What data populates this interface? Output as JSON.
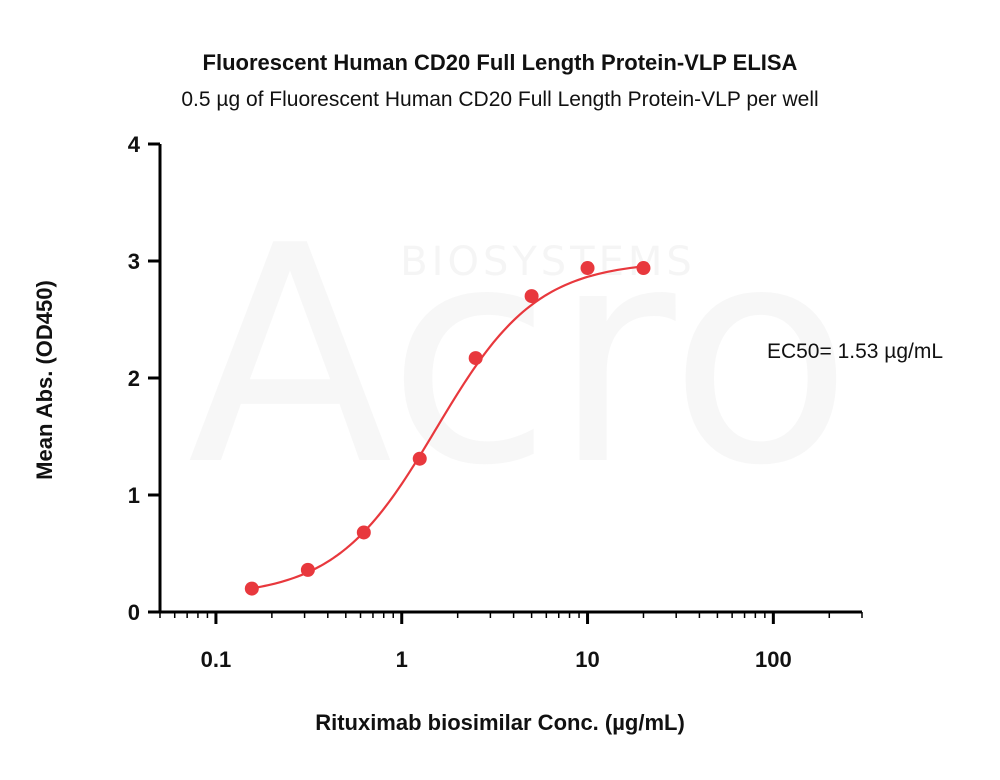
{
  "watermark": {
    "brand": "Acro",
    "sub": "BIOSYSTEMS"
  },
  "chart_data": {
    "type": "scatter",
    "title": "Fluorescent Human CD20 Full Length Protein-VLP ELISA",
    "subtitle": "0.5 µg of Fluorescent Human CD20 Full Length Protein-VLP per well",
    "xlabel": "Rituximab biosimilar Conc. (µg/mL)",
    "ylabel": "Mean Abs. (OD450)",
    "x_scale": "log",
    "xlim": [
      0.05,
      300
    ],
    "ylim": [
      0,
      4
    ],
    "x_ticks": [
      0.1,
      1,
      10,
      100
    ],
    "x_tick_labels": [
      "0.1",
      "1",
      "10",
      "100"
    ],
    "y_ticks": [
      0,
      1,
      2,
      3,
      4
    ],
    "y_tick_labels": [
      "0",
      "1",
      "2",
      "3",
      "4"
    ],
    "grid": false,
    "series": [
      {
        "color": "#e8383d",
        "x": [
          0.156,
          0.3125,
          0.625,
          1.25,
          2.5,
          5,
          10,
          20
        ],
        "y": [
          0.2,
          0.36,
          0.68,
          1.31,
          2.17,
          2.7,
          2.94,
          2.94
        ],
        "fit": {
          "model": "4PL",
          "bottom": 0.13,
          "top": 3.0,
          "ec50": 1.53,
          "hill": 1.6
        }
      }
    ],
    "annotations": [
      {
        "text": "EC50= 1.53 µg/mL"
      }
    ]
  }
}
